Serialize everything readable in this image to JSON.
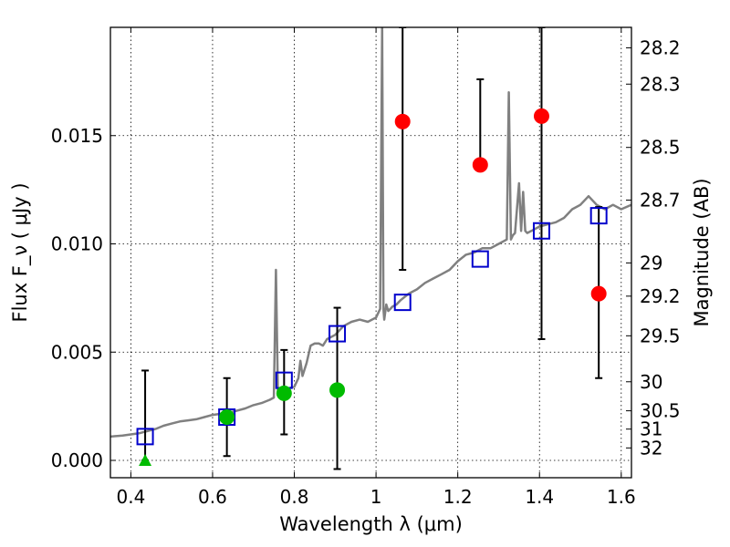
{
  "chart_data": {
    "type": "scatter",
    "xlabel": "Wavelength  λ (μm)",
    "ylabel": "Flux  F_ν  ( μJy )",
    "y2label": "Magnitude (AB)",
    "xlim": [
      0.35,
      1.625
    ],
    "ylim": [
      -0.0008,
      0.02
    ],
    "grid": true,
    "x_ticks": [
      {
        "value": 0.4,
        "label": "0.4"
      },
      {
        "value": 0.6,
        "label": "0.6"
      },
      {
        "value": 0.8,
        "label": "0.8"
      },
      {
        "value": 1.0,
        "label": "1"
      },
      {
        "value": 1.2,
        "label": "1.2"
      },
      {
        "value": 1.4,
        "label": "1.4"
      },
      {
        "value": 1.6,
        "label": "1.6"
      }
    ],
    "y_ticks": [
      {
        "value": 0.0,
        "label": "0.000"
      },
      {
        "value": 0.005,
        "label": "0.005"
      },
      {
        "value": 0.01,
        "label": "0.010"
      },
      {
        "value": 0.015,
        "label": "0.015"
      }
    ],
    "y2_ticks": [
      {
        "mag": 28.2,
        "label": "28.2"
      },
      {
        "mag": 28.3,
        "label": "28.3"
      },
      {
        "mag": 28.5,
        "label": "28.5"
      },
      {
        "mag": 28.7,
        "label": "28.7"
      },
      {
        "mag": 29.0,
        "label": "29"
      },
      {
        "mag": 29.2,
        "label": "29.2"
      },
      {
        "mag": 29.5,
        "label": "29.5"
      },
      {
        "mag": 30.0,
        "label": "30"
      },
      {
        "mag": 30.5,
        "label": "30.5"
      },
      {
        "mag": 31.0,
        "label": "31"
      },
      {
        "mag": 32.0,
        "label": "32"
      }
    ],
    "series": [
      {
        "kind": "model_spectrum",
        "color": "#808080",
        "x": [
          0.35,
          0.38,
          0.4,
          0.42,
          0.44,
          0.46,
          0.48,
          0.5,
          0.52,
          0.54,
          0.56,
          0.58,
          0.6,
          0.62,
          0.64,
          0.66,
          0.68,
          0.7,
          0.72,
          0.74,
          0.75,
          0.755,
          0.76,
          0.77,
          0.78,
          0.8,
          0.81,
          0.815,
          0.82,
          0.83,
          0.84,
          0.85,
          0.86,
          0.87,
          0.88,
          0.9,
          0.92,
          0.94,
          0.96,
          0.98,
          1.0,
          1.01,
          1.015,
          1.018,
          1.02,
          1.025,
          1.03,
          1.035,
          1.04,
          1.05,
          1.06,
          1.08,
          1.1,
          1.12,
          1.14,
          1.16,
          1.18,
          1.2,
          1.22,
          1.24,
          1.26,
          1.28,
          1.3,
          1.32,
          1.325,
          1.33,
          1.335,
          1.34,
          1.35,
          1.355,
          1.36,
          1.365,
          1.37,
          1.38,
          1.4,
          1.42,
          1.44,
          1.46,
          1.48,
          1.5,
          1.52,
          1.54,
          1.56,
          1.58,
          1.6,
          1.625
        ],
        "y": [
          0.0011,
          0.00115,
          0.0012,
          0.00125,
          0.00135,
          0.00145,
          0.0016,
          0.0017,
          0.0018,
          0.00185,
          0.0019,
          0.002,
          0.0021,
          0.00215,
          0.0022,
          0.0023,
          0.0024,
          0.00255,
          0.00265,
          0.0028,
          0.0029,
          0.0088,
          0.003,
          0.0031,
          0.0033,
          0.0034,
          0.0038,
          0.0046,
          0.0039,
          0.0045,
          0.0053,
          0.0054,
          0.0054,
          0.0053,
          0.0056,
          0.0058,
          0.0062,
          0.0064,
          0.0065,
          0.0064,
          0.0066,
          0.007,
          0.02,
          0.007,
          0.0065,
          0.0072,
          0.0069,
          0.007,
          0.0071,
          0.0072,
          0.0074,
          0.0077,
          0.0079,
          0.0082,
          0.0084,
          0.0086,
          0.0088,
          0.0092,
          0.0095,
          0.0096,
          0.0098,
          0.0098,
          0.01,
          0.0102,
          0.017,
          0.0102,
          0.0104,
          0.0105,
          0.0128,
          0.0106,
          0.0124,
          0.0106,
          0.0105,
          0.0106,
          0.0108,
          0.0109,
          0.011,
          0.0112,
          0.0116,
          0.0118,
          0.0122,
          0.0118,
          0.0116,
          0.0118,
          0.0116,
          0.0118
        ]
      },
      {
        "kind": "model_photometry",
        "marker": "open-square",
        "color": "#0000cc",
        "x": [
          0.435,
          0.635,
          0.775,
          0.905,
          1.065,
          1.255,
          1.405,
          1.545
        ],
        "y": [
          0.0011,
          0.002,
          0.0037,
          0.00585,
          0.0073,
          0.0093,
          0.0106,
          0.0113
        ]
      },
      {
        "kind": "detections",
        "marker": "filled-circle",
        "color": "#00bb00",
        "x": [
          0.635,
          0.775,
          0.905
        ],
        "y": [
          0.002,
          0.0031,
          0.00325
        ],
        "err_low": [
          0.0018,
          0.0019,
          0.00365
        ],
        "err_high": [
          0.0018,
          0.002,
          0.0038
        ]
      },
      {
        "kind": "upper_limit",
        "marker": "filled-triangle",
        "color": "#00bb00",
        "x": [
          0.435
        ],
        "y": [
          0.0
        ],
        "err_low": [
          0.0
        ],
        "err_high": [
          0.00415
        ]
      },
      {
        "kind": "low_significance",
        "marker": "filled-circle",
        "color": "#ff0000",
        "x": [
          1.065,
          1.255,
          1.405,
          1.545
        ],
        "y": [
          0.01565,
          0.01365,
          0.0159,
          0.0077
        ],
        "err_low": [
          0.00685,
          0.0,
          0.0103,
          0.0039
        ],
        "err_high": [
          0.00435,
          0.00395,
          0.0041,
          0.004
        ]
      }
    ]
  }
}
